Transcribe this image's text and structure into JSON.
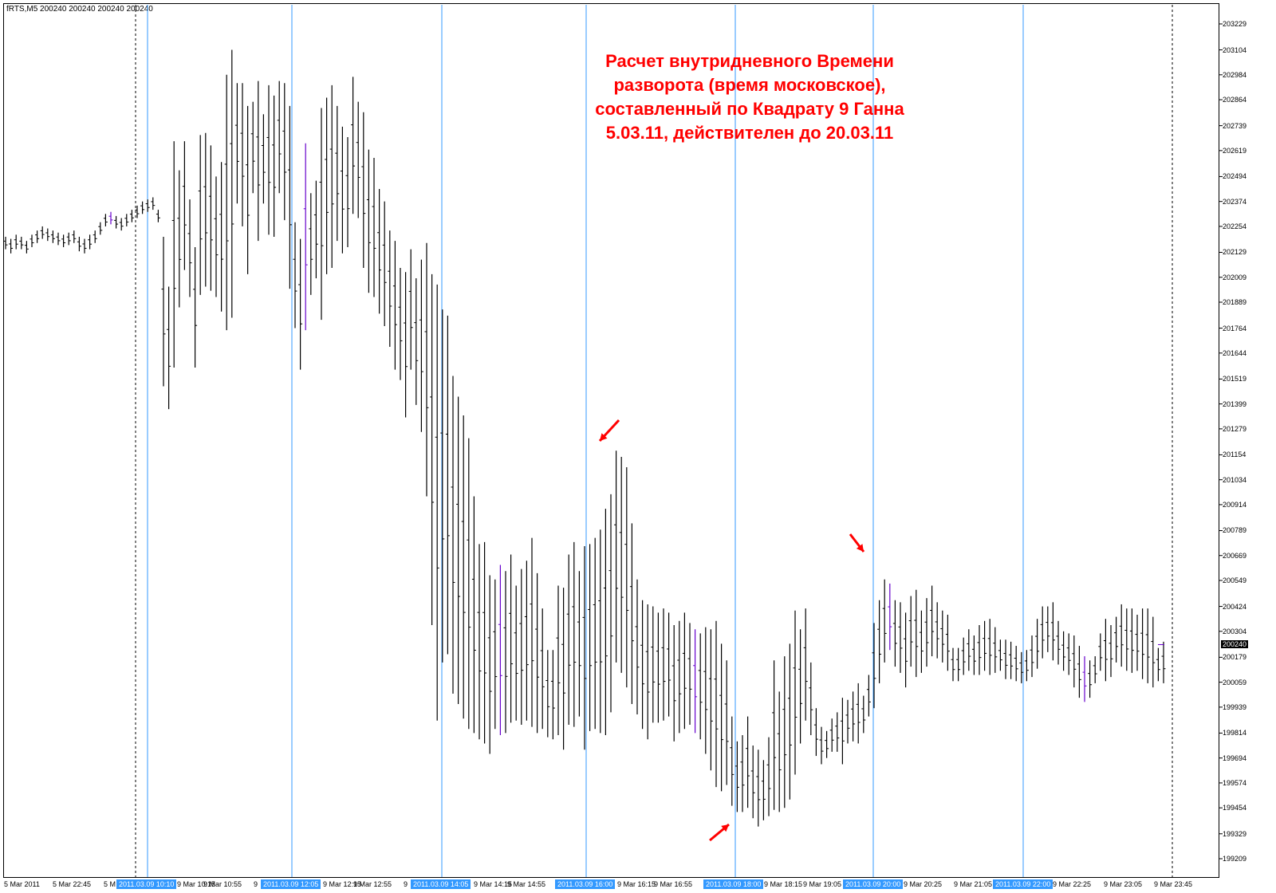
{
  "symbol": "fRTS,M5  200240 200240 200240 200240",
  "annotation": {
    "lines": [
      "Расчет внутридневного Времени",
      "разворота (время московское),",
      "составленный по Квадрату 9 Ганна",
      "5.03.11, действителен до 20.03.11"
    ],
    "color": "#ff0000"
  },
  "colors": {
    "bars": "#000000",
    "bars_secondary": "#6600cc",
    "reversal_lines": "#3399ff",
    "arrows": "#ff0000",
    "background": "#ffffff"
  },
  "chart_data": {
    "type": "ohlc",
    "timeframe": "M5",
    "y_axis": {
      "ylim": [
        199209,
        203229
      ],
      "tick_labels": [
        "203229",
        "203104",
        "202984",
        "202864",
        "202739",
        "202619",
        "202494",
        "202374",
        "202254",
        "202129",
        "202009",
        "201889",
        "201764",
        "201644",
        "201519",
        "201399",
        "201279",
        "201154",
        "201034",
        "200914",
        "200789",
        "200669",
        "200549",
        "200424",
        "200304",
        "200179",
        "200059",
        "199939",
        "199814",
        "199694",
        "199574",
        "199454",
        "199329",
        "199209"
      ],
      "current_price": "200240"
    },
    "x_axis": {
      "tick_labels": [
        "5 Mar 2011",
        "5 Mar 22:45",
        "5 M",
        "9 Mar 10:15",
        "9 Mar 10:55",
        "9",
        "9 Mar 12:15",
        "9 Mar 12:55",
        "9",
        "9 Mar 14:15",
        "9 Mar 14:55",
        "9 Mar 16:15",
        "9 Mar 16:55",
        "9 Mar 18:15",
        "9 Mar 19:05",
        "9 Mar 20:25",
        "9 Mar 21:05",
        "9 Mar 22:25",
        "9 Mar 23:05",
        "9 Mar 23:45"
      ],
      "highlighted_labels": [
        "2011.03.09 10:10",
        "2011.03.09 12:05",
        "2011.03.09 14:05",
        "2011.03.09 16:00",
        "2011.03.09 18:00",
        "2011.03.09 20:00",
        "2011.03.09 22:00"
      ]
    },
    "reversal_times": [
      "2011.03.09 10:10",
      "2011.03.09 12:05",
      "2011.03.09 14:05",
      "2011.03.09 16:00",
      "2011.03.09 18:00",
      "2011.03.09 20:00",
      "2011.03.09 22:00"
    ],
    "session_separators": [
      "5 Mar 2011 23:45",
      "9 Mar 2011 23:45"
    ],
    "arrows": [
      {
        "direction": "down-left",
        "near_price": 201154,
        "time": "2011.03.09 16:00"
      },
      {
        "direction": "up-right",
        "near_price": 199454,
        "time": "2011.03.09 18:00"
      },
      {
        "direction": "down-right",
        "near_price": 200669,
        "time": "2011.03.09 20:00"
      }
    ],
    "bars_high": [
      202204,
      202194,
      202214,
      202204,
      202184,
      202214,
      202234,
      202254,
      202244,
      202234,
      202224,
      202214,
      202224,
      202234,
      202204,
      202194,
      202214,
      202234,
      202274,
      202314,
      202324,
      202304,
      202294,
      202314,
      202334,
      202354,
      202374,
      202384,
      202394,
      202334,
      202204,
      201964,
      202664,
      202524,
      202664,
      202384,
      202154,
      202694,
      202704,
      202644,
      202494,
      202564,
      202984,
      203104,
      202944,
      202944,
      202834,
      202854,
      202954,
      202794,
      202934,
      202884,
      202954,
      202944,
      202834,
      202274,
      202194,
      202654,
      202414,
      202474,
      202824,
      202874,
      202934,
      202834,
      202734,
      202684,
      202974,
      202854,
      202804,
      202624,
      202584,
      202434,
      202374,
      202234,
      202184,
      202054,
      202034,
      202144,
      202004,
      202094,
      202174,
      202024,
      201974,
      201854,
      201824,
      201534,
      201434,
      201344,
      201234,
      200954,
      200724,
      200734,
      200574,
      200554,
      200624,
      200594,
      200674,
      200524,
      200604,
      200644,
      200754,
      200584,
      200414,
      200214,
      200214,
      200524,
      200514,
      200674,
      200734,
      200594,
      200714,
      200724,
      200754,
      200794,
      200894,
      200964,
      201174,
      201144,
      201094,
      200824,
      200554,
      200454,
      200434,
      200424,
      200394,
      200414,
      200394,
      200334,
      200354,
      200394,
      200344,
      200314,
      200294,
      200324,
      200314,
      200354,
      200244,
      200164,
      199894,
      199774,
      199804,
      199894,
      199754,
      199734,
      199684,
      199794,
      200164,
      200014,
      200184,
      200244,
      200404,
      200314,
      200414,
      200154,
      199934,
      199844,
      199824,
      199884,
      199914,
      199984,
      199974,
      200014,
      200054,
      199994,
      200094,
      200344,
      200454,
      200554,
      200534,
      200454,
      200444,
      200394,
      200474,
      200504,
      200404,
      200464,
      200524,
      200444,
      200404,
      200384,
      200224,
      200224,
      200274,
      200314,
      200284,
      200334,
      200354,
      200364,
      200324,
      200264,
      200264,
      200254,
      200234,
      200204,
      200214,
      200284,
      200364,
      200424,
      200424,
      200444,
      200354,
      200304,
      200294,
      200284,
      200234,
      200184,
      200164,
      200184,
      200294,
      200364,
      200334,
      200374,
      200434,
      200414,
      200414,
      200384,
      200414,
      200414,
      200374,
      200224,
      200254,
      200224,
      200314
    ],
    "bars_low": [
      202144,
      202124,
      202144,
      202144,
      202124,
      202154,
      202174,
      202194,
      202184,
      202174,
      202164,
      202154,
      202164,
      202174,
      202134,
      202124,
      202144,
      202174,
      202214,
      202254,
      202264,
      202244,
      202234,
      202254,
      202274,
      202294,
      202314,
      202324,
      202334,
      202274,
      201484,
      201374,
      201574,
      201864,
      202044,
      201914,
      201574,
      201924,
      201964,
      201944,
      201914,
      201844,
      201754,
      201814,
      202364,
      202254,
      202024,
      202414,
      202184,
      202364,
      202214,
      202204,
      202414,
      202284,
      201954,
      201764,
      201564,
      201754,
      201924,
      202004,
      201804,
      202024,
      202054,
      202184,
      202124,
      202154,
      202314,
      202294,
      202054,
      201934,
      201914,
      201834,
      201774,
      201674,
      201564,
      201514,
      201334,
      201564,
      201394,
      201264,
      200954,
      200334,
      199874,
      200154,
      200194,
      200004,
      199954,
      199884,
      199834,
      199814,
      199784,
      199764,
      199714,
      199834,
      199804,
      199814,
      199864,
      199874,
      199854,
      199874,
      199844,
      199814,
      199834,
      199794,
      199784,
      199804,
      199734,
      199854,
      199844,
      199894,
      199734,
      199824,
      199834,
      199814,
      199804,
      199914,
      200154,
      200104,
      200034,
      199954,
      199904,
      199834,
      199784,
      199864,
      199864,
      199874,
      199894,
      199774,
      199814,
      199834,
      199854,
      199814,
      199784,
      199714,
      199634,
      199554,
      199534,
      199564,
      199464,
      199434,
      199434,
      199454,
      199404,
      199364,
      199394,
      199414,
      199444,
      199434,
      199454,
      199494,
      199614,
      199764,
      199874,
      199804,
      199704,
      199664,
      199694,
      199724,
      199724,
      199664,
      199764,
      199774,
      199764,
      199814,
      199894,
      199934,
      200054,
      200154,
      200214,
      200134,
      200104,
      200034,
      200134,
      200084,
      200104,
      200134,
      200184,
      200174,
      200154,
      200114,
      200064,
      200064,
      200094,
      200114,
      200094,
      200094,
      200114,
      200094,
      200104,
      200114,
      200074,
      200074,
      200064,
      200054,
      200064,
      200084,
      200124,
      200174,
      200204,
      200164,
      200144,
      200114,
      200094,
      200034,
      199984,
      199964,
      199984,
      200054,
      200114,
      200064,
      200084,
      200154,
      200134,
      200114,
      200104,
      200114,
      200074,
      200054,
      200034,
      200064,
      200054,
      200084
    ],
    "reversal_highs_lows": {
      "high_before_16_00": 201114,
      "low_near_18_00": 199394,
      "high_near_20_00": 200594
    }
  }
}
